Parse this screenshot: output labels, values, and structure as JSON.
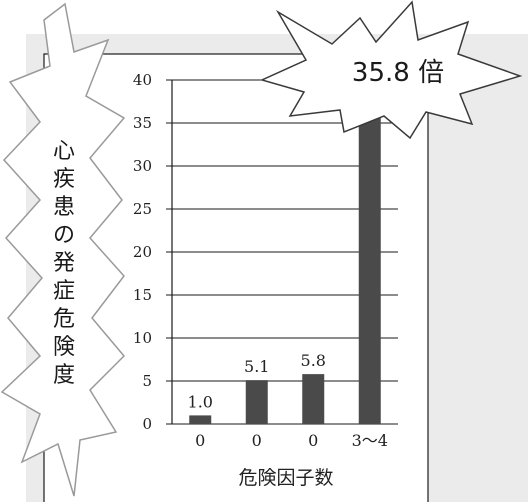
{
  "chart_data": {
    "type": "bar",
    "categories": [
      "0",
      "0",
      "0",
      "3～4"
    ],
    "values": [
      1.0,
      5.1,
      5.8,
      35.8
    ],
    "data_labels": [
      "1.0",
      "5.1",
      "5.8",
      ""
    ],
    "ylim": [
      0,
      40
    ],
    "yticks": [
      0,
      5,
      10,
      15,
      20,
      25,
      30,
      35,
      40
    ],
    "xlabel": "危険因子数",
    "ylabel": "心疾患の発症危険度",
    "grid": true,
    "bar_color": "#4a4a4a",
    "callout": "35.8 倍"
  }
}
